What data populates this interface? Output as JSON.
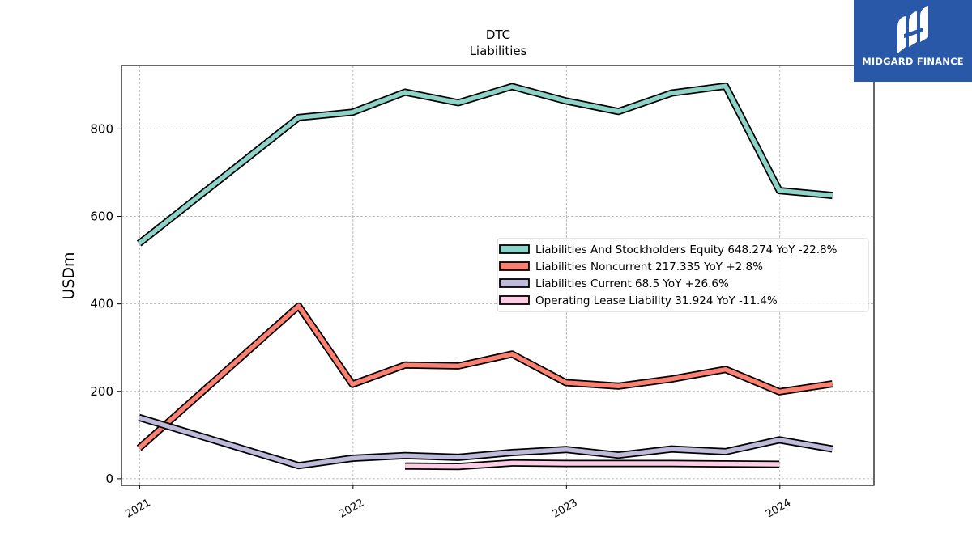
{
  "brand": {
    "name": "MIDGARD FINANCE",
    "color": "#2a58a8"
  },
  "chart_data": {
    "type": "line",
    "title": "DTC",
    "subtitle": "Liabilities",
    "xlabel": "",
    "ylabel": "USDm",
    "ylim": [
      -15,
      945
    ],
    "yticks": [
      0,
      200,
      400,
      600,
      800
    ],
    "xticks": [
      "2021",
      "2022",
      "2023",
      "2024"
    ],
    "grid": true,
    "legend_position": "center-right",
    "series": [
      {
        "name": "Liabilities And Stockholders Equity",
        "legend_label": "Liabilities And Stockholders Equity  648.274 YoY -22.8%",
        "color": "#8dd3c7",
        "x": [
          "2020-12-31",
          "2021-09-30",
          "2021-12-31",
          "2022-03-31",
          "2022-06-30",
          "2022-09-30",
          "2022-12-31",
          "2023-03-31",
          "2023-06-30",
          "2023-09-30",
          "2023-12-31",
          "2024-03-31"
        ],
        "values": [
          538,
          826,
          838,
          884,
          860,
          897,
          864,
          840,
          882,
          898,
          659,
          648
        ]
      },
      {
        "name": "Liabilities Noncurrent",
        "legend_label": "Liabilities Noncurrent  217.335 YoY +2.8%",
        "color": "#fb8072",
        "x": [
          "2020-12-31",
          "2021-09-30",
          "2021-12-31",
          "2022-03-31",
          "2022-06-30",
          "2022-09-30",
          "2022-12-31",
          "2023-03-31",
          "2023-06-30",
          "2023-09-30",
          "2023-12-31",
          "2024-03-31"
        ],
        "values": [
          70,
          395,
          216,
          260,
          258,
          285,
          220,
          212,
          228,
          250,
          199,
          217
        ]
      },
      {
        "name": "Liabilities Current",
        "legend_label": "Liabilities Current  68.5 YoY +26.6%",
        "color": "#bebada",
        "x": [
          "2020-12-31",
          "2021-09-30",
          "2021-12-31",
          "2022-03-31",
          "2022-06-30",
          "2022-09-30",
          "2022-12-31",
          "2023-03-31",
          "2023-06-30",
          "2023-09-30",
          "2023-12-31",
          "2024-03-31"
        ],
        "values": [
          140,
          30,
          47,
          53,
          49,
          60,
          67,
          54,
          68,
          62,
          89,
          68
        ]
      },
      {
        "name": "Operating Lease Liability",
        "legend_label": "Operating Lease Liability  31.924 YoY -11.4%",
        "color": "#fccde5",
        "x": [
          "2022-03-31",
          "2022-06-30",
          "2022-09-30",
          "2022-12-31",
          "2023-03-31",
          "2023-06-30",
          "2023-09-30",
          "2023-12-31"
        ],
        "values": [
          29,
          28,
          36,
          35,
          35,
          35,
          34,
          33
        ]
      }
    ]
  }
}
